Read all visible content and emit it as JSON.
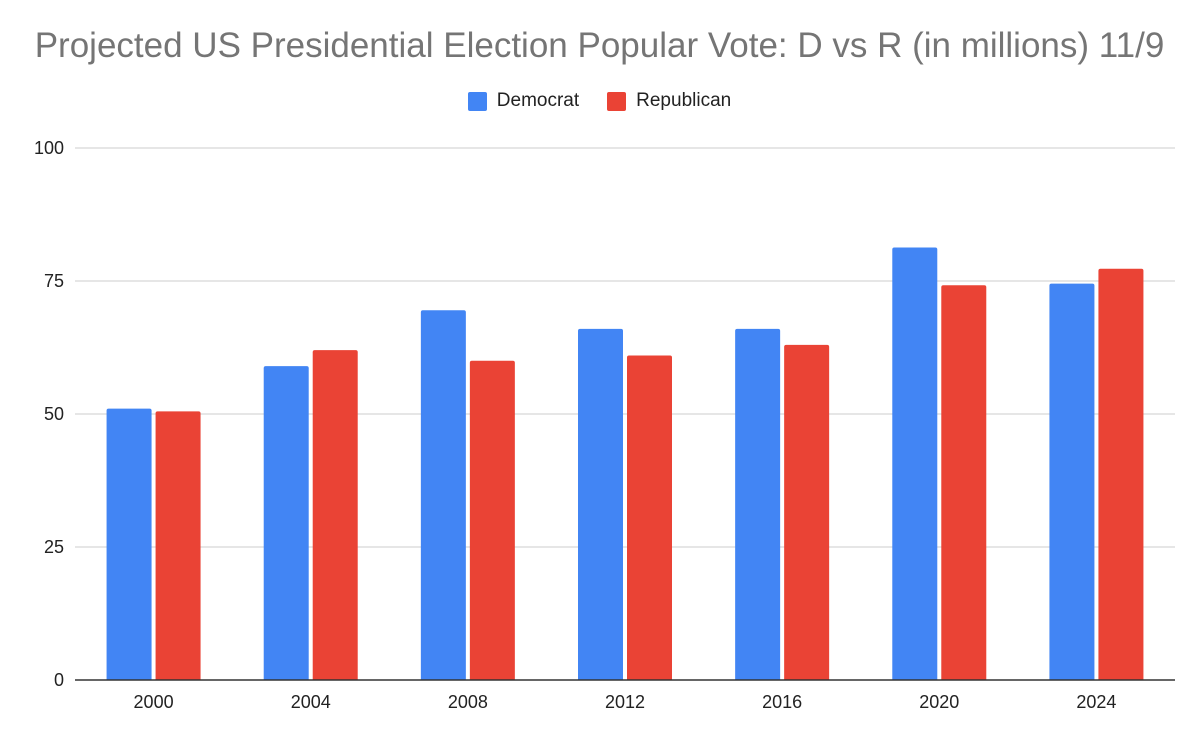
{
  "chart_data": {
    "type": "bar",
    "title": "Projected US Presidential Election Popular Vote: D vs R (in millions) 11/9",
    "categories": [
      "2000",
      "2004",
      "2008",
      "2012",
      "2016",
      "2020",
      "2024"
    ],
    "series": [
      {
        "name": "Democrat",
        "color": "#4285f4",
        "values": [
          51.0,
          59.0,
          69.5,
          66.0,
          66.0,
          81.3,
          74.5
        ]
      },
      {
        "name": "Republican",
        "color": "#ea4335",
        "values": [
          50.5,
          62.0,
          60.0,
          61.0,
          63.0,
          74.2,
          77.3
        ]
      }
    ],
    "ylim": [
      0,
      100
    ],
    "yticks": [
      "0",
      "25",
      "50",
      "75",
      "100"
    ],
    "grid": true,
    "legend_position": "top-center"
  }
}
